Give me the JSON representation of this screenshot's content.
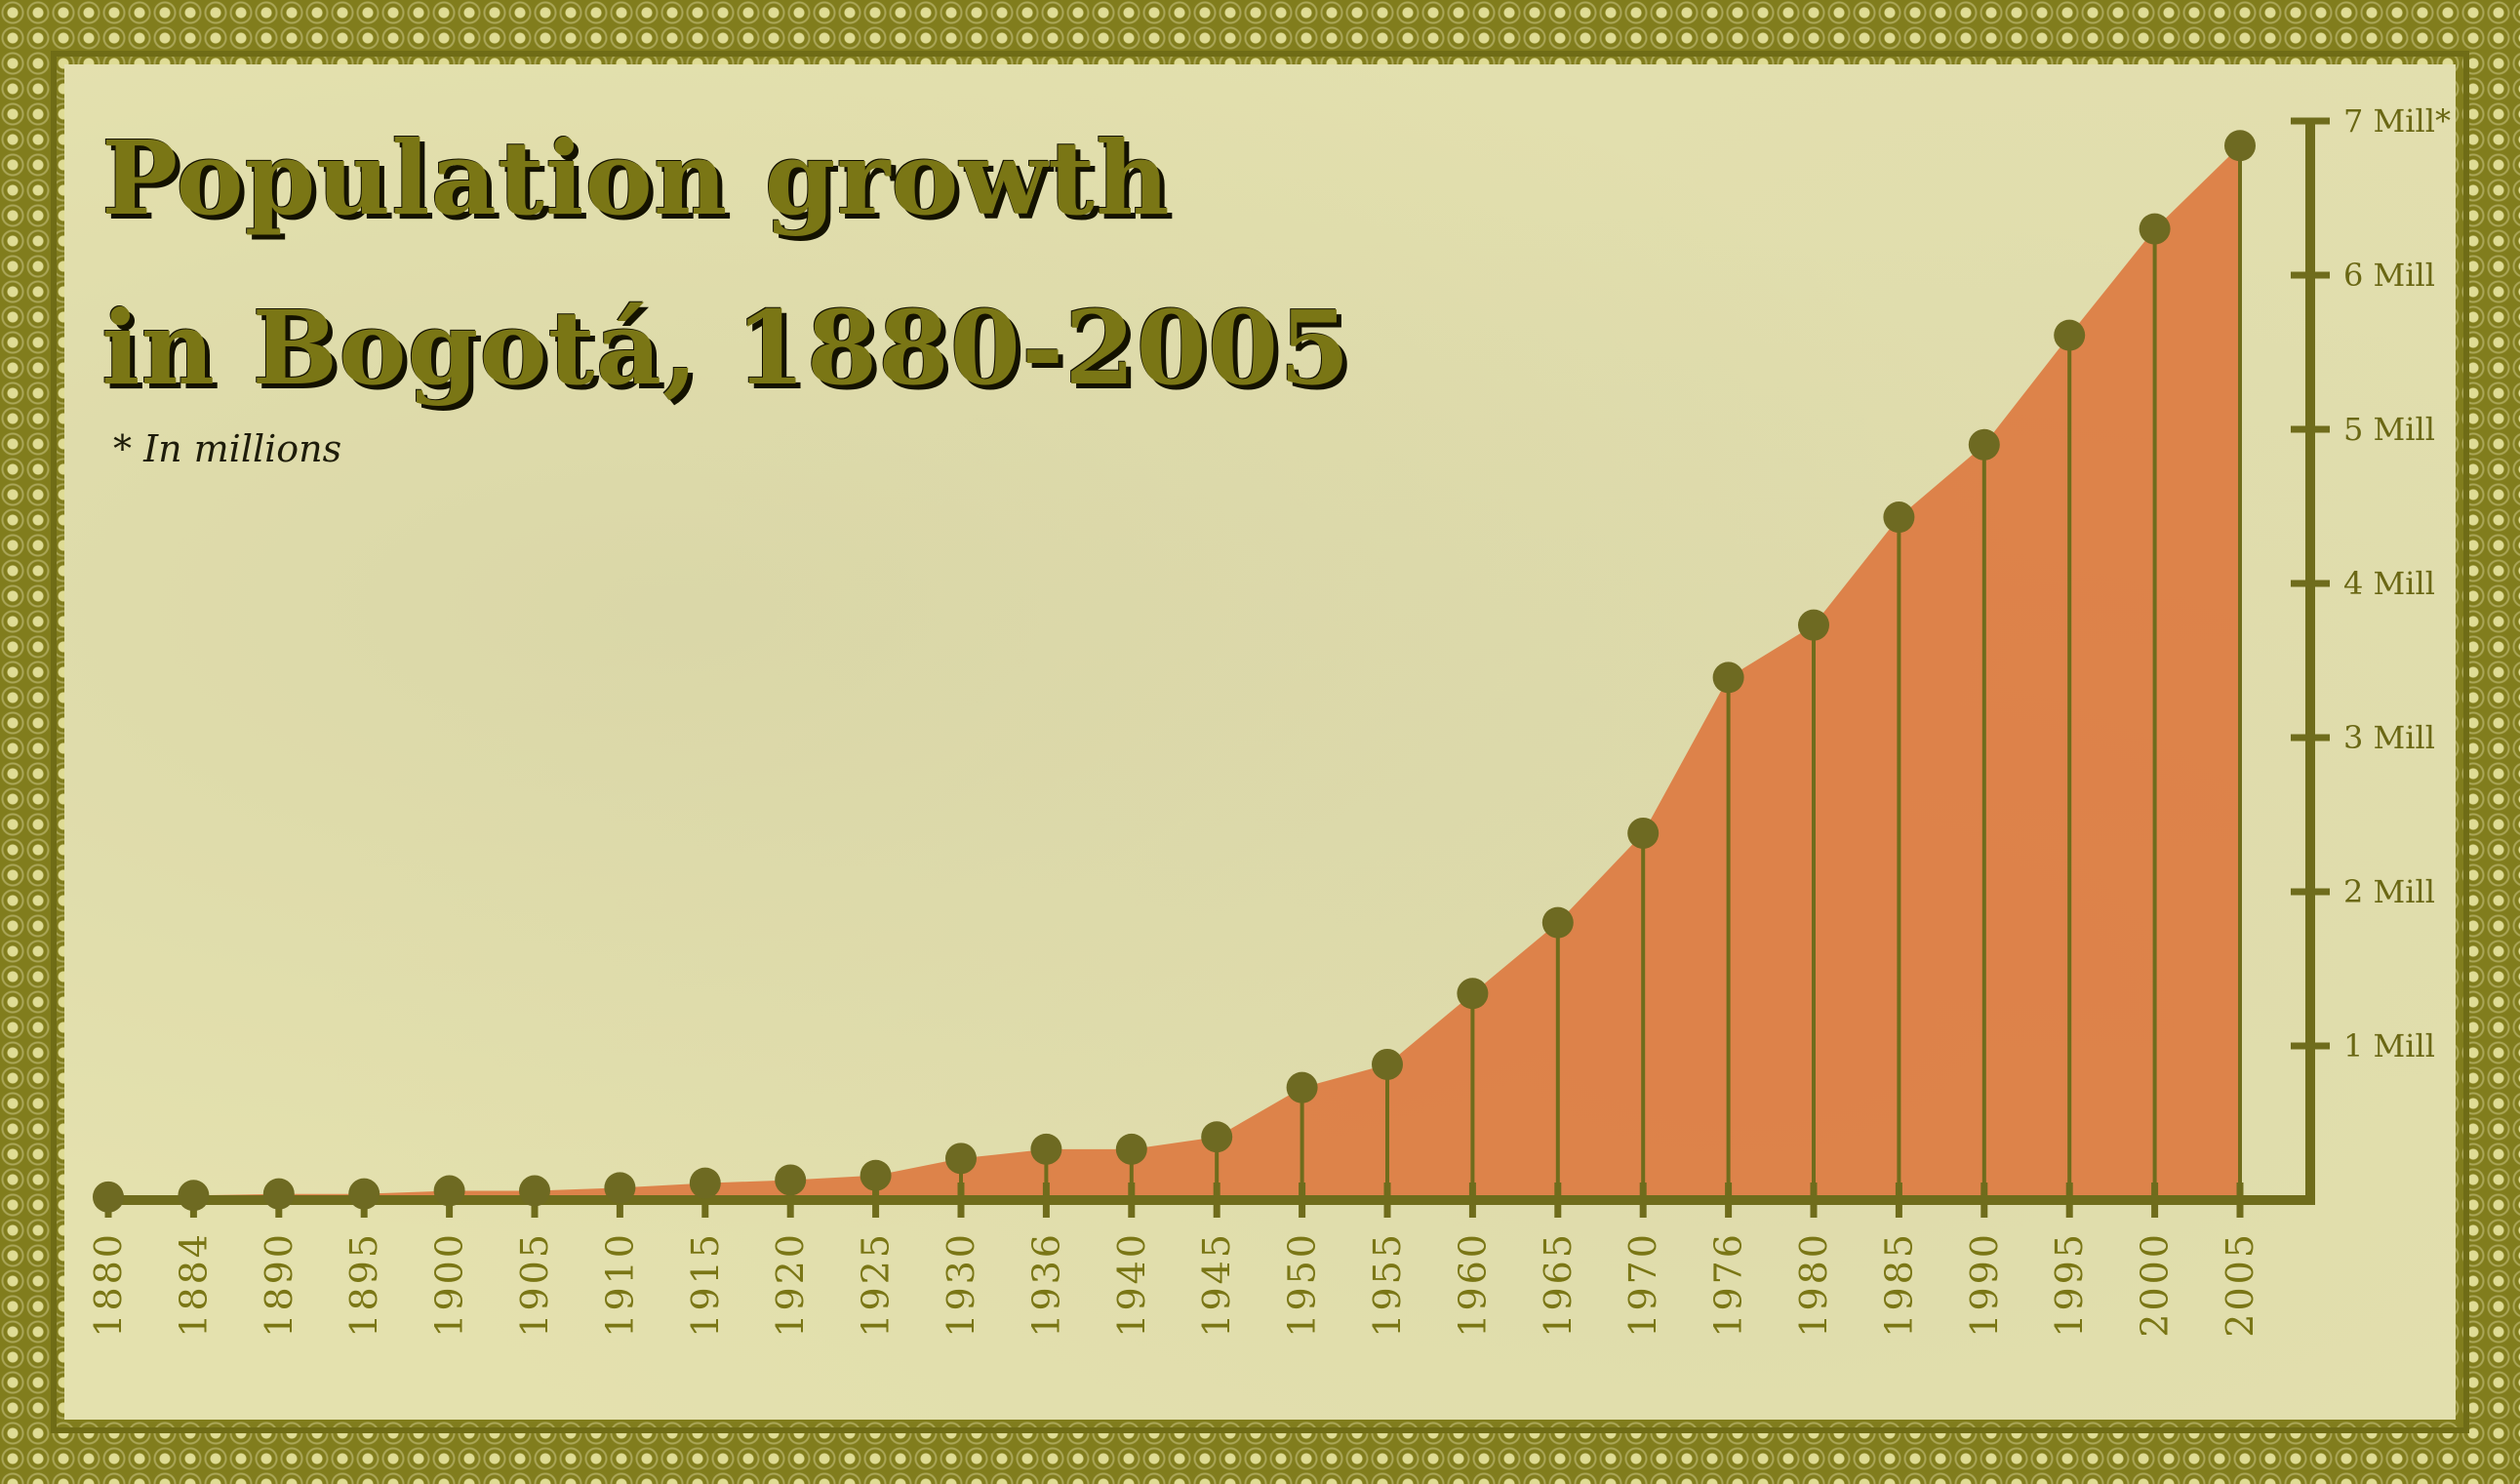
{
  "title_line1": "Population growth",
  "title_line2": "in Bogotá, 1880-2005",
  "note": "* In millions",
  "colors": {
    "area": "#dc7d45",
    "axis": "#6f6c1c",
    "marker": "#6e6a22",
    "frame": "#817d1d",
    "paper": "#e4e1ae"
  },
  "chart_data": {
    "type": "area",
    "title": "Population growth in Bogotá, 1880-2005",
    "note": "* In millions",
    "x_categories": [
      "1880",
      "1884",
      "1890",
      "1895",
      "1900",
      "1905",
      "1910",
      "1915",
      "1920",
      "1925",
      "1930",
      "1936",
      "1940",
      "1945",
      "1950",
      "1955",
      "1960",
      "1965",
      "1970",
      "1976",
      "1980",
      "1985",
      "1990",
      "1995",
      "2000",
      "2005"
    ],
    "values": [
      0.02,
      0.03,
      0.04,
      0.04,
      0.06,
      0.06,
      0.08,
      0.11,
      0.13,
      0.16,
      0.27,
      0.33,
      0.33,
      0.41,
      0.73,
      0.88,
      1.34,
      1.8,
      2.38,
      3.39,
      3.73,
      4.43,
      4.9,
      5.61,
      6.3,
      6.84
    ],
    "y_ticks": [
      "1 Mill",
      "2 Mill",
      "3 Mill",
      "4 Mill",
      "5 Mill",
      "6 Mill",
      "7 Mill*"
    ],
    "ylim": [
      0,
      7
    ],
    "y_axis_position": "right",
    "markers": true,
    "drop_lines": true,
    "grid": false
  }
}
